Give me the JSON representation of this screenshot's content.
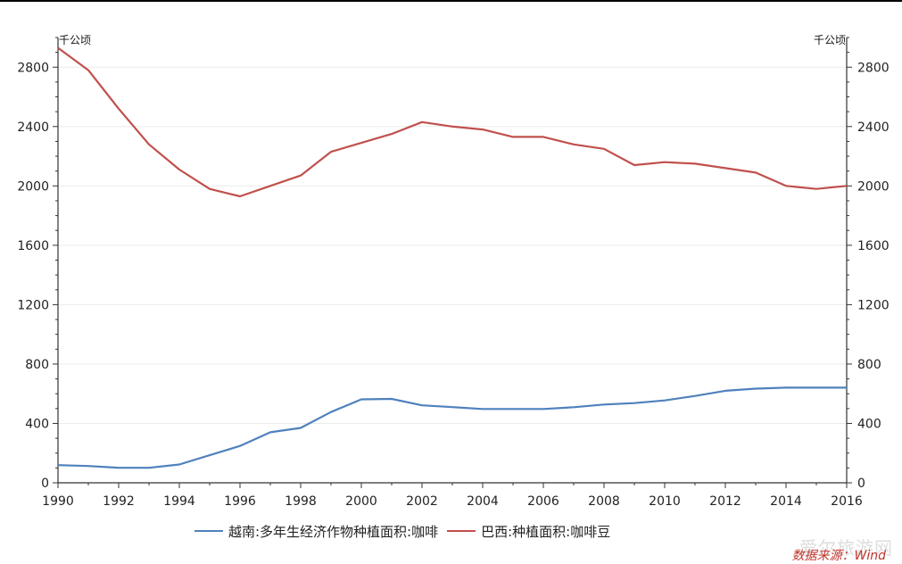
{
  "chart_data": {
    "type": "line",
    "title": "",
    "y_unit_left": "千公顷",
    "y_unit_right": "千公顷",
    "xlim": [
      1990,
      2016
    ],
    "ylim": [
      0,
      3000
    ],
    "x_ticks": [
      "1990",
      "1992",
      "1994",
      "1996",
      "1998",
      "2000",
      "2002",
      "2004",
      "2006",
      "2008",
      "2010",
      "2012",
      "2014",
      "2016"
    ],
    "y_ticks": [
      "0",
      "400",
      "800",
      "1200",
      "1600",
      "2000",
      "2400",
      "2800"
    ],
    "grid": "horizontal",
    "legend_position": "bottom",
    "x": [
      1990,
      1991,
      1992,
      1993,
      1994,
      1995,
      1996,
      1997,
      1998,
      1999,
      2000,
      2001,
      2002,
      2003,
      2004,
      2005,
      2006,
      2007,
      2008,
      2009,
      2010,
      2011,
      2012,
      2013,
      2014,
      2015,
      2016
    ],
    "series": [
      {
        "name": "越南:多年生经济作物种植面积:咖啡",
        "color": "#4f81bd",
        "values": [
          119,
          113,
          101,
          101,
          123,
          186,
          248,
          340,
          370,
          477,
          562,
          565,
          522,
          510,
          497,
          497,
          497,
          509,
          527,
          537,
          555,
          585,
          620,
          634,
          641,
          641,
          641
        ]
      },
      {
        "name": "巴西:种植面积:咖啡豆",
        "color": "#c0504d",
        "values": [
          2930,
          2780,
          2520,
          2280,
          2110,
          1980,
          1930,
          2000,
          2070,
          2230,
          2290,
          2350,
          2430,
          2400,
          2380,
          2330,
          2330,
          2280,
          2250,
          2140,
          2160,
          2150,
          2120,
          2090,
          2000,
          1980,
          2000
        ]
      }
    ]
  },
  "source_text": "数据来源：Wind",
  "watermark_text": "爱尔旅游网"
}
